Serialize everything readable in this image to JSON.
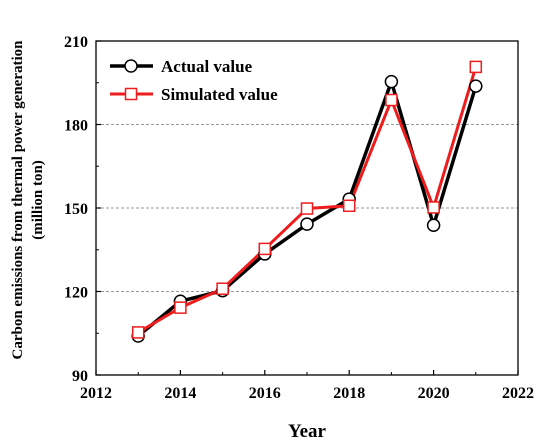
{
  "chart_data": {
    "type": "line",
    "title": "",
    "xlabel": "Year",
    "ylabel_line1": "Carbon emissions from thermal power generation",
    "ylabel_line2": "(million ton)",
    "xlim": [
      2012,
      2022
    ],
    "ylim": [
      90,
      210
    ],
    "xticks": [
      2012,
      2014,
      2016,
      2018,
      2020,
      2022
    ],
    "yticks": [
      90,
      120,
      150,
      180,
      210
    ],
    "grid": "horizontal dashed at 120, 150, 180",
    "legend_position": "top-left",
    "x": [
      2013,
      2014,
      2015,
      2016,
      2017,
      2018,
      2019,
      2020,
      2021
    ],
    "series": [
      {
        "name": "Actual value",
        "color": "#000000",
        "marker": "circle",
        "values": [
          104,
          116.5,
          120.3,
          133.5,
          144.2,
          153.2,
          195.4,
          143.8,
          193.8
        ]
      },
      {
        "name": "Simulated value",
        "color": "#ee1c1c",
        "marker": "square",
        "values": [
          105.3,
          114.2,
          121,
          135.3,
          149.8,
          150.8,
          188.8,
          150.2,
          200.7
        ]
      }
    ]
  }
}
